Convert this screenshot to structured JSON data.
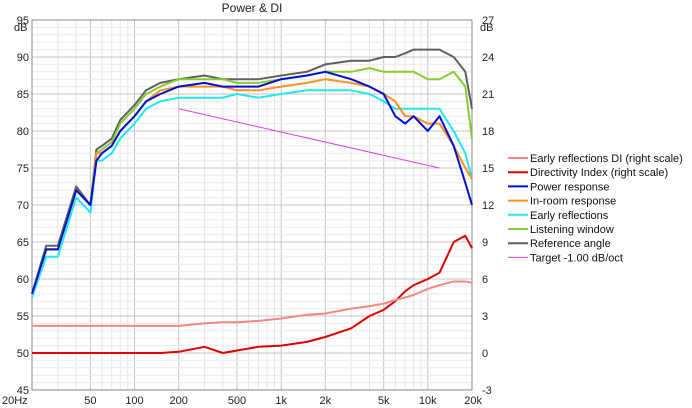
{
  "chart_data": {
    "type": "line",
    "title": "Power & DI",
    "left_axis": {
      "unit": "dB",
      "min": 45,
      "max": 95,
      "ticks": [
        95,
        90,
        85,
        80,
        75,
        70,
        65,
        60,
        55,
        50,
        45
      ]
    },
    "right_axis": {
      "unit": "dB",
      "min": -3,
      "max": 27,
      "ticks": [
        27,
        24,
        21,
        18,
        15,
        12,
        9,
        6,
        3,
        0,
        -3
      ]
    },
    "x_axis": {
      "scale": "log",
      "min": 20,
      "max": 20000,
      "ticks": [
        {
          "value": 20,
          "label": "20Hz"
        },
        {
          "value": 50,
          "label": "50"
        },
        {
          "value": 100,
          "label": "100"
        },
        {
          "value": 200,
          "label": "200"
        },
        {
          "value": 500,
          "label": "500"
        },
        {
          "value": 1000,
          "label": "1k"
        },
        {
          "value": 2000,
          "label": "2k"
        },
        {
          "value": 5000,
          "label": "5k"
        },
        {
          "value": 10000,
          "label": "10k"
        },
        {
          "value": 20000,
          "label": "20k"
        }
      ]
    },
    "grid": true,
    "legend_position": "right",
    "x": [
      20,
      25,
      30,
      40,
      50,
      55,
      60,
      70,
      80,
      100,
      120,
      150,
      200,
      300,
      400,
      500,
      700,
      1000,
      1500,
      2000,
      3000,
      4000,
      5000,
      6000,
      7000,
      8000,
      10000,
      12000,
      15000,
      18000,
      20000
    ],
    "series": [
      {
        "name": "Early reflections DI (right scale)",
        "color": "#f08a80",
        "axis": "right",
        "values": [
          2.2,
          2.2,
          2.2,
          2.2,
          2.2,
          2.2,
          2.2,
          2.2,
          2.2,
          2.2,
          2.2,
          2.2,
          2.2,
          2.4,
          2.5,
          2.5,
          2.6,
          2.8,
          3.1,
          3.2,
          3.6,
          3.8,
          4.0,
          4.3,
          4.5,
          4.7,
          5.2,
          5.5,
          5.8,
          5.8,
          5.7
        ]
      },
      {
        "name": "Directivity Index (right scale)",
        "color": "#e00000",
        "axis": "right",
        "values": [
          0.0,
          0.0,
          0.0,
          0.0,
          0.0,
          0.0,
          0.0,
          0.0,
          0.0,
          0.0,
          0.0,
          0.0,
          0.1,
          0.5,
          0.0,
          0.2,
          0.5,
          0.6,
          0.9,
          1.3,
          2.0,
          3.0,
          3.5,
          4.2,
          5.0,
          5.5,
          6.0,
          6.5,
          9.0,
          9.5,
          8.5
        ]
      },
      {
        "name": "Power response",
        "color": "#0010d0",
        "axis": "left",
        "values": [
          58,
          64,
          64,
          72,
          70,
          76,
          77,
          78,
          80,
          82,
          84,
          85,
          86,
          86.5,
          86,
          86,
          86,
          87,
          87.5,
          88,
          87,
          86,
          85,
          82,
          81,
          82,
          80,
          82,
          78,
          73,
          70
        ]
      },
      {
        "name": "In-room response",
        "color": "#ff9020",
        "axis": "left",
        "values": [
          58,
          64,
          64,
          72,
          70,
          77,
          77,
          78,
          80,
          82,
          84,
          85.5,
          86,
          86,
          86,
          85.5,
          85.5,
          86,
          86.5,
          87,
          86.5,
          86,
          85,
          84,
          82,
          82,
          81,
          81,
          78,
          75,
          73.5
        ]
      },
      {
        "name": "Early reflections",
        "color": "#20e8ee",
        "axis": "left",
        "values": [
          57.5,
          63,
          63,
          71,
          69,
          76,
          76,
          77,
          79,
          81,
          83,
          84,
          84.5,
          84.5,
          84.5,
          85,
          84.5,
          85,
          85.5,
          85.5,
          85.5,
          85,
          84,
          83,
          83,
          83,
          83,
          83,
          80,
          77,
          73.5
        ]
      },
      {
        "name": "Listening window",
        "color": "#88cc30",
        "axis": "left",
        "values": [
          58,
          64,
          64,
          72,
          70,
          77,
          77.5,
          78.5,
          81,
          83,
          85,
          86,
          87,
          87,
          87,
          86.5,
          86.5,
          87,
          87.5,
          88,
          88,
          88.5,
          88,
          88,
          88,
          88,
          87,
          87,
          88,
          86,
          79
        ]
      },
      {
        "name": "Reference angle",
        "color": "#606060",
        "axis": "left",
        "values": [
          58,
          64.5,
          64.5,
          72.5,
          70,
          77.5,
          78,
          79,
          81.5,
          83.5,
          85.5,
          86.5,
          87,
          87.5,
          87,
          87,
          87,
          87.5,
          88,
          89,
          89.5,
          89.5,
          90,
          90,
          90.5,
          91,
          91,
          91,
          90,
          88,
          83
        ]
      },
      {
        "name": "Target -1.00 dB/oct",
        "color": "#e040e0",
        "axis": "left",
        "x": [
          200,
          12000
        ],
        "values": [
          83,
          75
        ]
      }
    ]
  }
}
